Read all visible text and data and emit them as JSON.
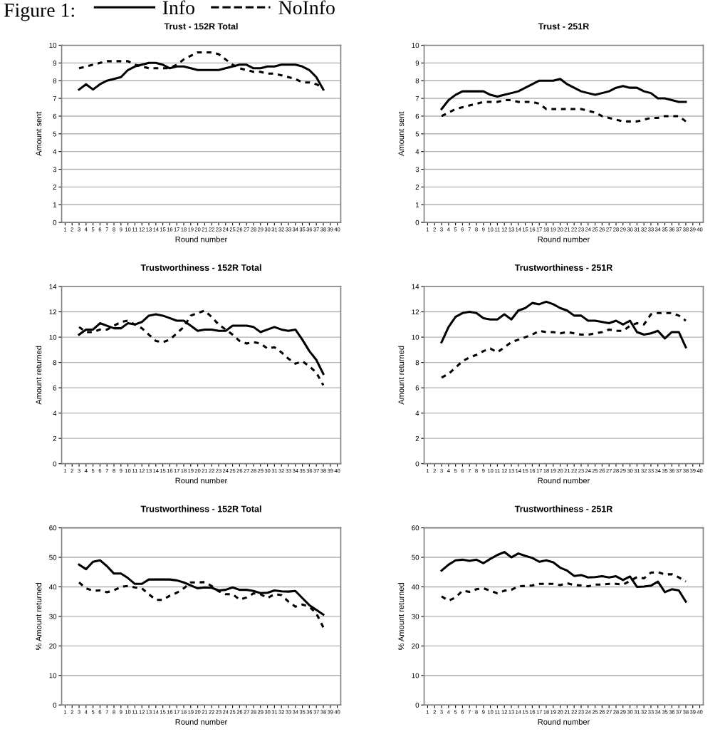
{
  "chart_data": [
    {
      "type": "line",
      "title": "Trust - 152R Total",
      "xlabel": "Round number",
      "ylabel": "Amount sent",
      "legend": "top",
      "legend_title": "Figure 1:",
      "grid": "y",
      "marker": "none",
      "categories": [
        "1",
        "2",
        "3",
        "4",
        "5",
        "6",
        "7",
        "8",
        "9",
        "10",
        "11",
        "12",
        "13",
        "14",
        "15",
        "16",
        "17",
        "18",
        "19",
        "20",
        "21",
        "22",
        "23",
        "24",
        "25",
        "26",
        "27",
        "28",
        "29",
        "30",
        "31",
        "32",
        "33",
        "34",
        "35",
        "36",
        "37",
        "38",
        "39",
        "40"
      ],
      "ylim": [
        0,
        10
      ],
      "yticks": [
        0,
        1,
        2,
        3,
        4,
        5,
        6,
        7,
        8,
        9,
        10
      ],
      "series": [
        {
          "name": "Info",
          "color": "#000000",
          "line_style": "solid",
          "values": [
            null,
            null,
            7.5,
            7.8,
            7.5,
            7.8,
            8.0,
            8.1,
            8.2,
            8.6,
            8.8,
            8.9,
            9.0,
            9.0,
            8.9,
            8.7,
            8.8,
            8.8,
            8.7,
            8.6,
            8.6,
            8.6,
            8.6,
            8.7,
            8.8,
            8.9,
            8.9,
            8.7,
            8.7,
            8.8,
            8.8,
            8.9,
            8.9,
            8.9,
            8.8,
            8.6,
            8.2,
            7.5,
            null,
            null
          ]
        },
        {
          "name": "NoInfo",
          "color": "#000000",
          "line_style": "dashed",
          "values": [
            null,
            null,
            8.7,
            8.8,
            8.9,
            9.0,
            9.1,
            9.1,
            9.1,
            9.1,
            8.9,
            8.8,
            8.7,
            8.7,
            8.7,
            8.7,
            8.9,
            9.2,
            9.4,
            9.6,
            9.6,
            9.6,
            9.5,
            9.2,
            8.9,
            8.7,
            8.6,
            8.5,
            8.5,
            8.4,
            8.4,
            8.3,
            8.2,
            8.1,
            7.9,
            7.9,
            7.8,
            7.6,
            null,
            null
          ]
        }
      ]
    },
    {
      "type": "line",
      "title": "Trust - 251R",
      "xlabel": "Round number",
      "ylabel": "Amount sent",
      "grid": "y",
      "marker": "none",
      "categories": [
        "1",
        "2",
        "3",
        "4",
        "5",
        "6",
        "7",
        "8",
        "9",
        "10",
        "11",
        "12",
        "13",
        "14",
        "15",
        "16",
        "17",
        "18",
        "19",
        "20",
        "21",
        "22",
        "23",
        "24",
        "25",
        "26",
        "27",
        "28",
        "29",
        "30",
        "31",
        "32",
        "33",
        "34",
        "35",
        "36",
        "37",
        "38",
        "39",
        "40"
      ],
      "ylim": [
        0,
        10
      ],
      "yticks": [
        0,
        1,
        2,
        3,
        4,
        5,
        6,
        7,
        8,
        9,
        10
      ],
      "series": [
        {
          "color": "#000000",
          "line_style": "solid",
          "values": [
            null,
            null,
            6.4,
            6.9,
            7.2,
            7.4,
            7.4,
            7.4,
            7.4,
            7.2,
            7.1,
            7.2,
            7.3,
            7.4,
            7.6,
            7.8,
            8.0,
            8.0,
            8.0,
            8.1,
            7.8,
            7.6,
            7.4,
            7.3,
            7.2,
            7.3,
            7.4,
            7.6,
            7.7,
            7.6,
            7.6,
            7.4,
            7.3,
            7.0,
            7.0,
            6.9,
            6.8,
            6.8,
            null,
            null
          ]
        },
        {
          "color": "#000000",
          "line_style": "dashed",
          "values": [
            null,
            null,
            6.0,
            6.2,
            6.4,
            6.5,
            6.6,
            6.7,
            6.8,
            6.8,
            6.8,
            6.9,
            6.9,
            6.8,
            6.8,
            6.8,
            6.7,
            6.4,
            6.4,
            6.4,
            6.4,
            6.4,
            6.4,
            6.3,
            6.2,
            6.0,
            5.9,
            5.8,
            5.7,
            5.7,
            5.7,
            5.8,
            5.9,
            5.9,
            6.0,
            6.0,
            6.0,
            5.7,
            null,
            null
          ]
        }
      ]
    },
    {
      "type": "line",
      "title": "Trustworthiness - 152R Total",
      "xlabel": "Round number",
      "ylabel": "Amount returned",
      "grid": "y",
      "marker": "none",
      "categories": [
        "1",
        "2",
        "3",
        "4",
        "5",
        "6",
        "7",
        "8",
        "9",
        "10",
        "11",
        "12",
        "13",
        "14",
        "15",
        "16",
        "17",
        "18",
        "19",
        "20",
        "21",
        "22",
        "23",
        "24",
        "25",
        "26",
        "27",
        "28",
        "29",
        "30",
        "31",
        "32",
        "33",
        "34",
        "35",
        "36",
        "37",
        "38",
        "39",
        "40"
      ],
      "ylim": [
        0,
        14
      ],
      "yticks": [
        0,
        2,
        4,
        6,
        8,
        10,
        12,
        14
      ],
      "series": [
        {
          "color": "#000000",
          "line_style": "solid",
          "values": [
            null,
            null,
            10.2,
            10.6,
            10.6,
            11.1,
            10.9,
            10.7,
            10.7,
            11.1,
            11.0,
            11.2,
            11.7,
            11.8,
            11.7,
            11.5,
            11.3,
            11.3,
            10.9,
            10.5,
            10.6,
            10.6,
            10.5,
            10.5,
            10.9,
            10.9,
            10.9,
            10.8,
            10.4,
            10.6,
            10.8,
            10.6,
            10.5,
            10.6,
            9.8,
            8.9,
            8.2,
            7.1,
            null,
            null
          ]
        },
        {
          "color": "#000000",
          "line_style": "dashed",
          "values": [
            null,
            null,
            10.8,
            10.4,
            10.4,
            10.6,
            10.6,
            10.9,
            11.2,
            11.3,
            11.0,
            10.7,
            10.2,
            9.7,
            9.6,
            9.8,
            10.3,
            10.8,
            11.7,
            11.9,
            12.1,
            11.6,
            11.0,
            10.6,
            10.2,
            9.7,
            9.5,
            9.6,
            9.5,
            9.1,
            9.2,
            8.8,
            8.3,
            7.9,
            8.1,
            7.7,
            7.2,
            6.2,
            null,
            null
          ]
        }
      ]
    },
    {
      "type": "line",
      "title": "Trustworthiness - 251R",
      "xlabel": "Round number",
      "ylabel": "Amount returned",
      "grid": "y",
      "marker": "none",
      "categories": [
        "1",
        "2",
        "3",
        "4",
        "5",
        "6",
        "7",
        "8",
        "9",
        "10",
        "11",
        "12",
        "13",
        "14",
        "15",
        "16",
        "17",
        "18",
        "19",
        "20",
        "21",
        "22",
        "23",
        "24",
        "25",
        "26",
        "27",
        "28",
        "29",
        "30",
        "31",
        "32",
        "33",
        "34",
        "35",
        "36",
        "37",
        "38",
        "39",
        "40"
      ],
      "ylim": [
        0,
        14
      ],
      "yticks": [
        0,
        2,
        4,
        6,
        8,
        10,
        12,
        14
      ],
      "series": [
        {
          "color": "#000000",
          "line_style": "solid",
          "values": [
            null,
            null,
            9.6,
            10.8,
            11.6,
            11.9,
            12.0,
            11.9,
            11.5,
            11.4,
            11.4,
            11.8,
            11.4,
            12.1,
            12.3,
            12.7,
            12.6,
            12.8,
            12.6,
            12.3,
            12.1,
            11.7,
            11.7,
            11.3,
            11.3,
            11.2,
            11.1,
            11.3,
            11.0,
            11.3,
            10.4,
            10.2,
            10.3,
            10.5,
            9.9,
            10.4,
            10.4,
            9.2,
            null,
            null
          ]
        },
        {
          "color": "#000000",
          "line_style": "dashed",
          "values": [
            null,
            null,
            6.8,
            7.1,
            7.6,
            8.1,
            8.4,
            8.6,
            8.9,
            9.1,
            8.8,
            9.2,
            9.6,
            9.8,
            10.0,
            10.2,
            10.5,
            10.4,
            10.4,
            10.3,
            10.4,
            10.3,
            10.2,
            10.2,
            10.3,
            10.4,
            10.6,
            10.5,
            10.5,
            10.9,
            11.1,
            11.0,
            11.8,
            11.9,
            11.9,
            11.9,
            11.7,
            11.3,
            null,
            null
          ]
        }
      ]
    },
    {
      "type": "line",
      "title": "Trustworthiness - 152R Total",
      "xlabel": "Round number",
      "ylabel": "% Amount returned",
      "grid": "y",
      "marker": "none",
      "categories": [
        "1",
        "2",
        "3",
        "4",
        "5",
        "6",
        "7",
        "8",
        "9",
        "10",
        "11",
        "12",
        "13",
        "14",
        "15",
        "16",
        "17",
        "18",
        "19",
        "20",
        "21",
        "22",
        "23",
        "24",
        "25",
        "26",
        "27",
        "28",
        "29",
        "30",
        "31",
        "32",
        "33",
        "34",
        "35",
        "36",
        "37",
        "38",
        "39",
        "40"
      ],
      "ylim": [
        0,
        60
      ],
      "yticks": [
        0,
        10,
        20,
        30,
        40,
        50,
        60
      ],
      "series": [
        {
          "color": "#000000",
          "line_style": "solid",
          "values": [
            null,
            null,
            47.5,
            46,
            48.5,
            49,
            47,
            44.5,
            44.5,
            43,
            41,
            41,
            42.5,
            42.5,
            42.5,
            42.5,
            42.2,
            41.5,
            40.5,
            39.5,
            39.8,
            39.7,
            38.8,
            39,
            39.8,
            39,
            39,
            38.6,
            37.9,
            38,
            38.8,
            38.5,
            38.4,
            38.6,
            36.2,
            33.8,
            32.2,
            30.6,
            null,
            null
          ]
        },
        {
          "color": "#000000",
          "line_style": "dashed",
          "values": [
            null,
            null,
            41.5,
            39.5,
            38.7,
            38.8,
            38.2,
            38.8,
            40,
            40.3,
            39.8,
            39.5,
            37.5,
            35.6,
            35.6,
            37,
            38,
            39.5,
            41.5,
            41.5,
            41.6,
            40.3,
            38.5,
            37.5,
            37.5,
            35.7,
            36.4,
            37.8,
            37.5,
            36.2,
            37.5,
            37.2,
            35,
            33.3,
            34,
            33.3,
            31,
            26.3,
            null,
            null
          ]
        }
      ]
    },
    {
      "type": "line",
      "title": "Trustworthiness - 251R",
      "xlabel": "Round number",
      "ylabel": "% Amount returned",
      "grid": "y",
      "marker": "none",
      "categories": [
        "1",
        "2",
        "3",
        "4",
        "5",
        "6",
        "7",
        "8",
        "9",
        "10",
        "11",
        "12",
        "13",
        "14",
        "15",
        "16",
        "17",
        "18",
        "19",
        "20",
        "21",
        "22",
        "23",
        "24",
        "25",
        "26",
        "27",
        "28",
        "29",
        "30",
        "31",
        "32",
        "33",
        "34",
        "35",
        "36",
        "37",
        "38",
        "39",
        "40"
      ],
      "ylim": [
        0,
        60
      ],
      "yticks": [
        0,
        10,
        20,
        30,
        40,
        50,
        60
      ],
      "series": [
        {
          "color": "#000000",
          "line_style": "solid",
          "values": [
            null,
            null,
            45.5,
            47.5,
            49,
            49.2,
            48.8,
            49.2,
            48,
            49.5,
            50.8,
            51.8,
            50,
            51.3,
            50.5,
            49.8,
            48.5,
            49,
            48.3,
            46.5,
            45.5,
            43.7,
            44,
            43.2,
            43.3,
            43.6,
            43.2,
            43.6,
            42.3,
            43.5,
            40,
            40.1,
            40.4,
            41.8,
            38.2,
            39.2,
            38.8,
            35,
            null,
            null
          ]
        },
        {
          "color": "#000000",
          "line_style": "dashed",
          "values": [
            null,
            null,
            36.8,
            35.3,
            36.4,
            38.7,
            38.3,
            39.2,
            39.5,
            38.7,
            37.8,
            38.7,
            39,
            40.2,
            40.3,
            40.5,
            41,
            41,
            41,
            40.6,
            41.2,
            40.6,
            40.5,
            40.2,
            40.8,
            40.8,
            41,
            41,
            40.8,
            42,
            43.3,
            42.9,
            44.8,
            45,
            44.2,
            44.3,
            43.2,
            41.8,
            null,
            null
          ]
        }
      ]
    }
  ]
}
